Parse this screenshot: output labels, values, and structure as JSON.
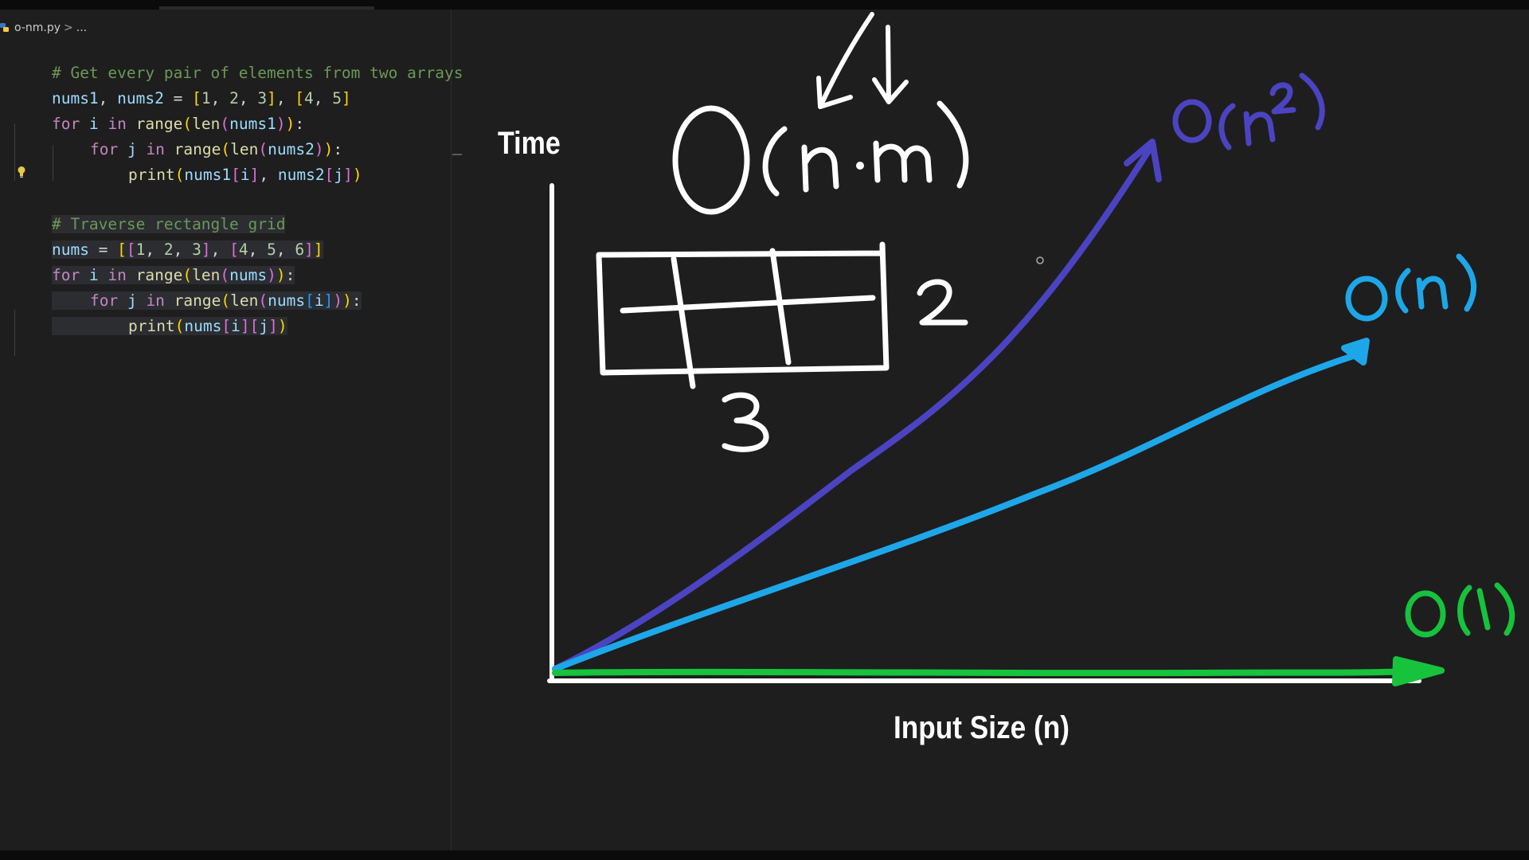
{
  "editor": {
    "filename": "o-nm.py",
    "breadcrumb_separator": ">",
    "breadcrumb_more": "...",
    "lines": {
      "l1": "# Get every pair of elements from two arrays",
      "l2": {
        "a": "nums1",
        "b": ", ",
        "c": "nums2",
        "d": " = ",
        "e": "[",
        "f": "1",
        "g": ", ",
        "h": "2",
        "i": ", ",
        "j": "3",
        "k": "]",
        "l": ", ",
        "m": "[",
        "n": "4",
        "o": ", ",
        "p": "5",
        "q": "]"
      },
      "l3": {
        "a": "for",
        "b": " ",
        "c": "i",
        "d": " in ",
        "e": "range",
        "f": "(",
        "g": "len",
        "h": "(",
        "i": "nums1",
        "j": ")",
        "k": ")",
        "l": ":"
      },
      "l4": {
        "a": "for",
        "b": " ",
        "c": "j",
        "d": " in ",
        "e": "range",
        "f": "(",
        "g": "len",
        "h": "(",
        "i": "nums2",
        "j": ")",
        "k": ")",
        "l": ":"
      },
      "l5": {
        "a": "print",
        "b": "(",
        "c": "nums1",
        "d": "[",
        "e": "i",
        "f": "]",
        "g": ", ",
        "h": "nums2",
        "i": "[",
        "j": "j",
        "k": "]",
        "l": ")"
      },
      "l6": "# Traverse rectangle grid",
      "l7": {
        "a": "nums",
        "b": " = ",
        "c": "[",
        "d": "[",
        "e": "1",
        "f": ", ",
        "g": "2",
        "h": ", ",
        "i": "3",
        "j": "]",
        "k": ", ",
        "l": "[",
        "m": "4",
        "n": ", ",
        "o": "5",
        "p": ", ",
        "q": "6",
        "r": "]",
        "s": "]"
      },
      "l8": {
        "a": "for",
        "b": " ",
        "c": "i",
        "d": " in ",
        "e": "range",
        "f": "(",
        "g": "len",
        "h": "(",
        "i": "nums",
        "j": ")",
        "k": ")",
        "l": ":"
      },
      "l9": {
        "a": "for",
        "b": " ",
        "c": "j",
        "d": " in ",
        "e": "range",
        "f": "(",
        "g": "len",
        "h": "(",
        "i": "nums",
        "j": "[",
        "k": "i",
        "l": "]",
        "m": ")",
        "n": ")",
        "o": ":"
      },
      "l10": {
        "a": "print",
        "b": "(",
        "c": "nums",
        "d": "[",
        "e": "i",
        "f": "]",
        "g": "[",
        "h": "j",
        "i": "]",
        "j": ")"
      }
    }
  },
  "whiteboard": {
    "y_axis_label": "Time",
    "x_axis_label": "Input Size (n)",
    "complexity_title": "O(n·m)",
    "grid_rows_label": "2",
    "grid_cols_label": "3",
    "grid_rows": 2,
    "grid_cols": 3,
    "curves": [
      {
        "name": "O(n²)",
        "color": "#4b44c2"
      },
      {
        "name": "O(n)",
        "color": "#1ea7e8"
      },
      {
        "name": "O(1)",
        "color": "#17c23c"
      }
    ],
    "colors": {
      "ink": "#ffffff",
      "background": "#1e1e1e"
    }
  }
}
